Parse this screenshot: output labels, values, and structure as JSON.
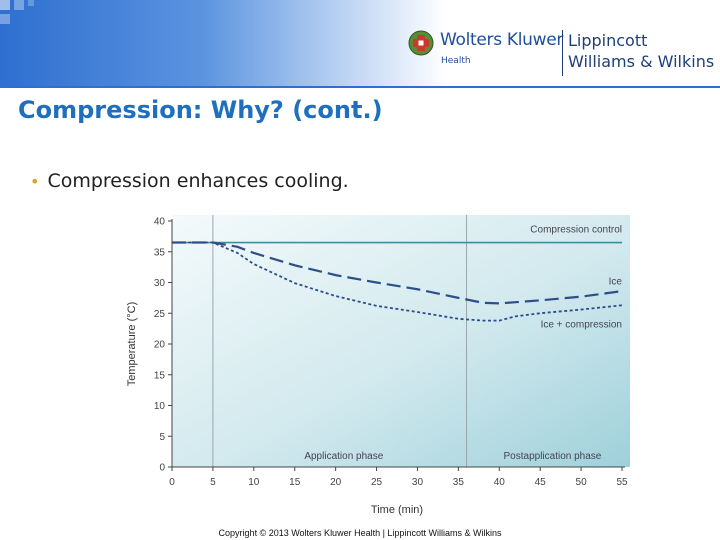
{
  "header": {
    "logo_name": "Wolters Kluwer",
    "logo_sub": "Health",
    "partner_line1": "Lippincott",
    "partner_line2": "Williams & Wilkins"
  },
  "slide": {
    "title": "Compression: Why? (cont.)",
    "bullet": "Compression enhances cooling."
  },
  "footer": {
    "copyright": "Copyright © 2013 Wolters Kluwer Health | Lippincott Williams & Wilkins"
  },
  "chart_data": {
    "type": "line",
    "xlabel": "Time (min)",
    "ylabel": "Temperature (°C)",
    "xlim": [
      0,
      55
    ],
    "ylim": [
      0,
      40
    ],
    "xticks": [
      0,
      5,
      10,
      15,
      20,
      25,
      30,
      35,
      40,
      45,
      50,
      55
    ],
    "yticks": [
      0,
      5,
      10,
      15,
      20,
      25,
      30,
      35,
      40
    ],
    "grid": false,
    "phases": [
      {
        "label": "Application phase",
        "start": 5,
        "end": 36
      },
      {
        "label": "Postapplication phase",
        "start": 36,
        "end": 55
      }
    ],
    "series": [
      {
        "name": "Compression control",
        "style": "solid",
        "color": "#3a8fa0",
        "x": [
          0,
          55
        ],
        "y": [
          36.5,
          36.5
        ]
      },
      {
        "name": "Ice",
        "style": "dashed",
        "color": "#2c4f8a",
        "x": [
          0,
          5,
          8,
          10,
          15,
          20,
          25,
          30,
          35,
          38,
          40,
          45,
          50,
          55
        ],
        "y": [
          36.5,
          36.5,
          35.8,
          34.8,
          32.8,
          31.2,
          30.0,
          28.9,
          27.5,
          26.7,
          26.6,
          27.1,
          27.7,
          28.6
        ]
      },
      {
        "name": "Ice + compression",
        "style": "dotted",
        "color": "#2c4f8a",
        "x": [
          0,
          5,
          8,
          10,
          15,
          20,
          25,
          30,
          35,
          38,
          40,
          42,
          45,
          50,
          55
        ],
        "y": [
          36.5,
          36.5,
          34.8,
          33.0,
          29.9,
          27.8,
          26.2,
          25.2,
          24.1,
          23.8,
          23.8,
          24.5,
          25.0,
          25.6,
          26.3
        ]
      }
    ]
  }
}
